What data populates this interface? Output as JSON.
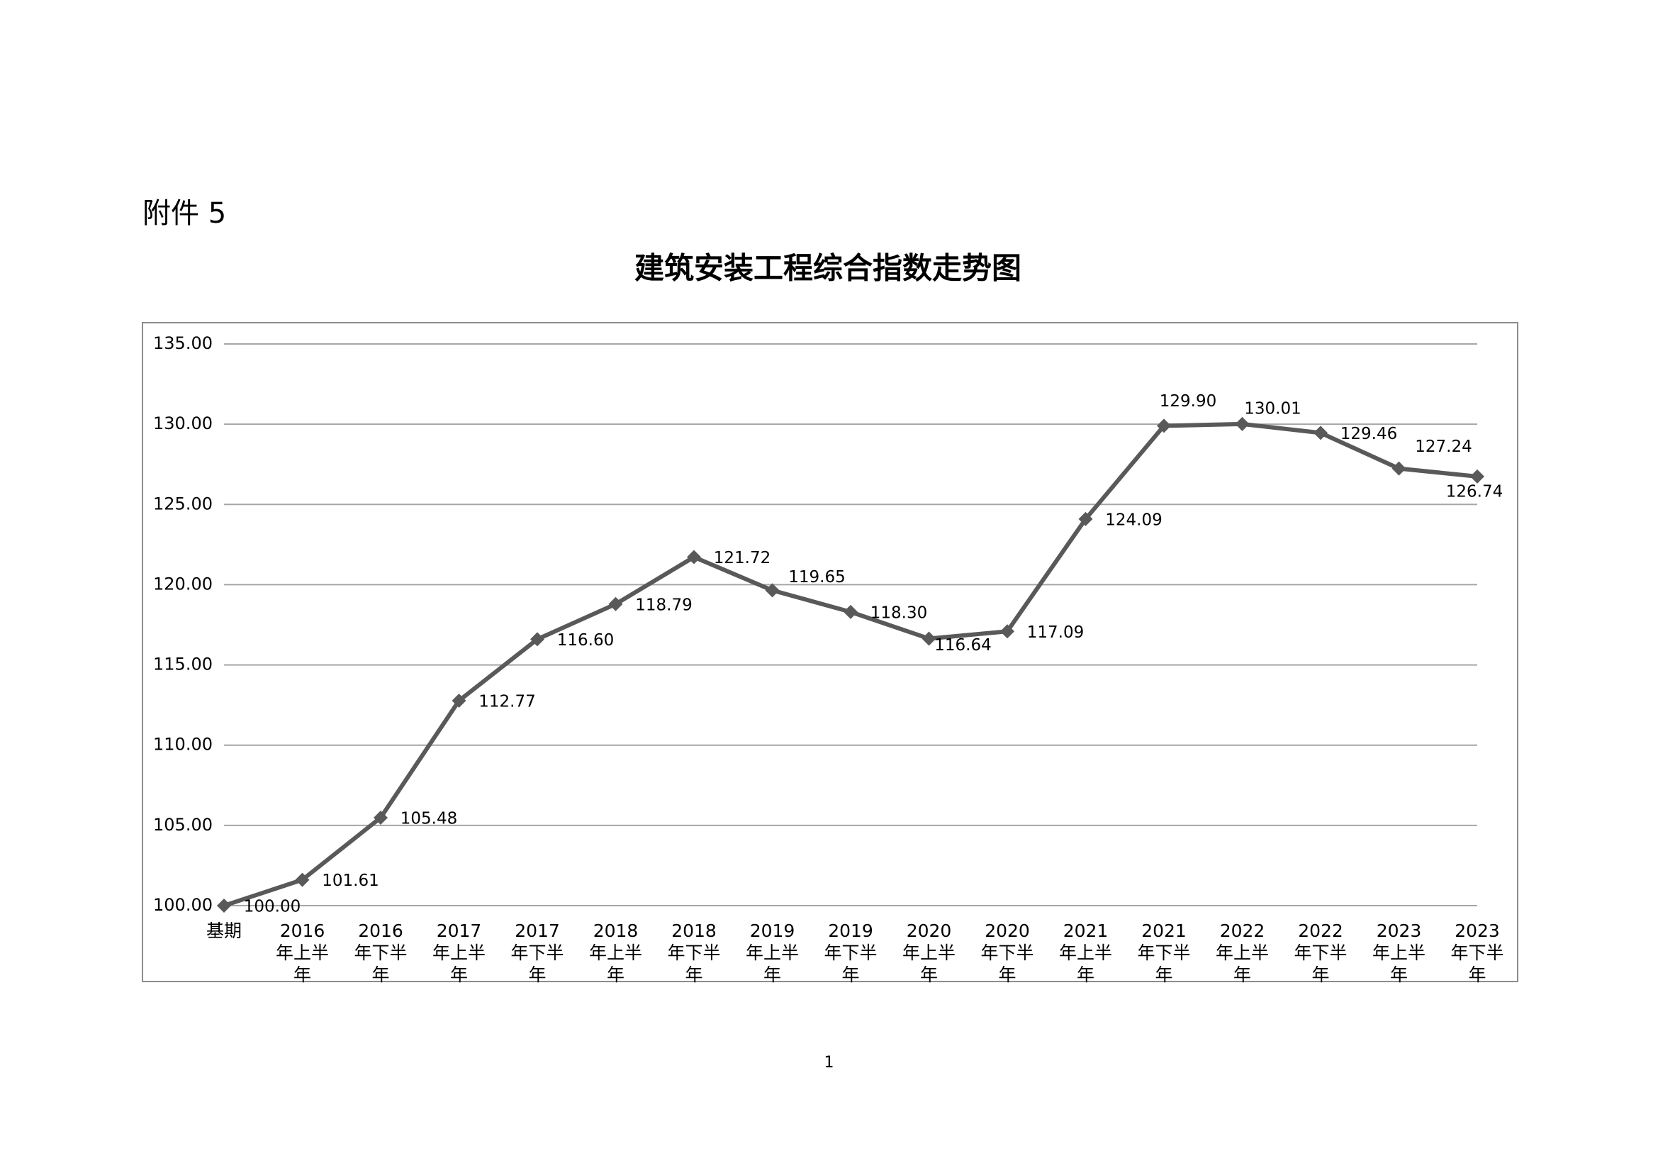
{
  "attachment_label": "附件 5",
  "page_number": "1",
  "chart_data": {
    "type": "line",
    "title": "建筑安装工程综合指数走势图",
    "categories": [
      "基期",
      "2016年上半年",
      "2016年下半年",
      "2017年上半年",
      "2017年下半年",
      "2018年上半年",
      "2018年下半年",
      "2019年上半年",
      "2019年下半年",
      "2020年上半年",
      "2020年下半年",
      "2021年上半年",
      "2021年下半年",
      "2022年上半年",
      "2022年下半年",
      "2023年上半年",
      "2023年下半年"
    ],
    "values": [
      100,
      101.61,
      105.48,
      112.77,
      116.6,
      118.79,
      121.72,
      119.65,
      118.3,
      116.64,
      117.09,
      124.09,
      129.9,
      130.01,
      129.46,
      127.24,
      126.74
    ],
    "value_labels": [
      "100.00",
      "101.61",
      "105.48",
      "112.77",
      "116.60",
      "118.79",
      "121.72",
      "119.65",
      "118.30",
      "116.64",
      "117.09",
      "124.09",
      "129.90",
      "130.01",
      "129.46",
      "127.24",
      "126.74"
    ],
    "color": "#595959",
    "ylim": [
      100,
      135
    ],
    "yticks": [
      {
        "value": 100,
        "label": "100.00"
      },
      {
        "value": 105,
        "label": "105.00"
      },
      {
        "value": 110,
        "label": "110.00"
      },
      {
        "value": 115,
        "label": "115.00"
      },
      {
        "value": 120,
        "label": "120.00"
      },
      {
        "value": 125,
        "label": "125.00"
      },
      {
        "value": 130,
        "label": "130.00"
      },
      {
        "value": 135,
        "label": "135.00"
      }
    ],
    "grid": true
  }
}
